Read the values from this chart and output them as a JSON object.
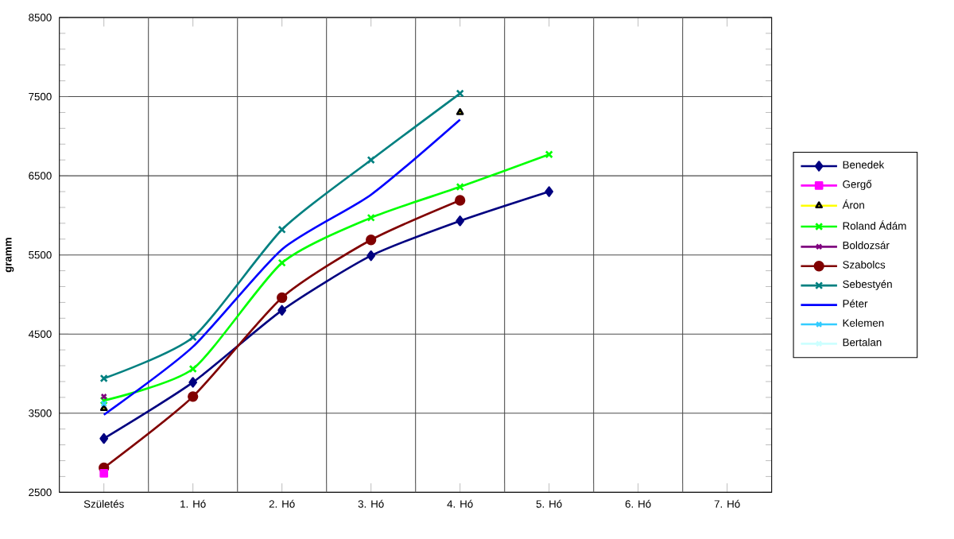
{
  "chart_data": {
    "type": "line",
    "ylabel": "gramm",
    "categories": [
      "Születés",
      "1. Hó",
      "2. Hó",
      "3. Hó",
      "4. Hó",
      "5. Hó",
      "6. Hó",
      "7. Hó"
    ],
    "ylim": [
      2500,
      8500
    ],
    "yticks": [
      2500,
      3500,
      4500,
      5500,
      6500,
      7500,
      8500
    ],
    "grid": true,
    "legend": "right",
    "series": [
      {
        "name": "Benedek",
        "color": "#000080",
        "marker": "diamond",
        "values": [
          3180,
          3890,
          4800,
          5490,
          5930,
          6300,
          null,
          null
        ]
      },
      {
        "name": "Gergő",
        "color": "#ff00ff",
        "marker": "square",
        "values": [
          2740,
          null,
          null,
          null,
          null,
          null,
          null,
          null
        ]
      },
      {
        "name": "Áron",
        "color": "#ffff00",
        "marker": "triangle",
        "values": [
          3560,
          null,
          null,
          null,
          7300,
          null,
          null,
          null
        ]
      },
      {
        "name": "Roland Ádám",
        "color": "#00ff00",
        "marker": "cross",
        "values": [
          3660,
          4060,
          5400,
          5970,
          6360,
          6770,
          null,
          null
        ]
      },
      {
        "name": "Boldozsár",
        "color": "#800080",
        "marker": "cross",
        "values": [
          3710,
          null,
          null,
          null,
          null,
          null,
          null,
          null
        ]
      },
      {
        "name": "Szabolcs",
        "color": "#800000",
        "marker": "circle",
        "values": [
          2810,
          3710,
          4960,
          5690,
          6190,
          null,
          null,
          null
        ]
      },
      {
        "name": "Sebestyén",
        "color": "#008080",
        "marker": "cross",
        "values": [
          3940,
          4460,
          5820,
          6700,
          7540,
          null,
          null,
          null
        ]
      },
      {
        "name": "Péter",
        "color": "#0000ff",
        "marker": "none",
        "values": [
          3480,
          4340,
          5570,
          6260,
          7210,
          null,
          null,
          null
        ]
      },
      {
        "name": "Kelemen",
        "color": "#33ccff",
        "marker": "cross",
        "values": [
          3620,
          null,
          null,
          null,
          null,
          null,
          null,
          null
        ]
      },
      {
        "name": "Bertalan",
        "color": "#ccffff",
        "marker": "cross",
        "values": [
          null,
          null,
          null,
          null,
          null,
          null,
          null,
          null
        ]
      }
    ]
  }
}
